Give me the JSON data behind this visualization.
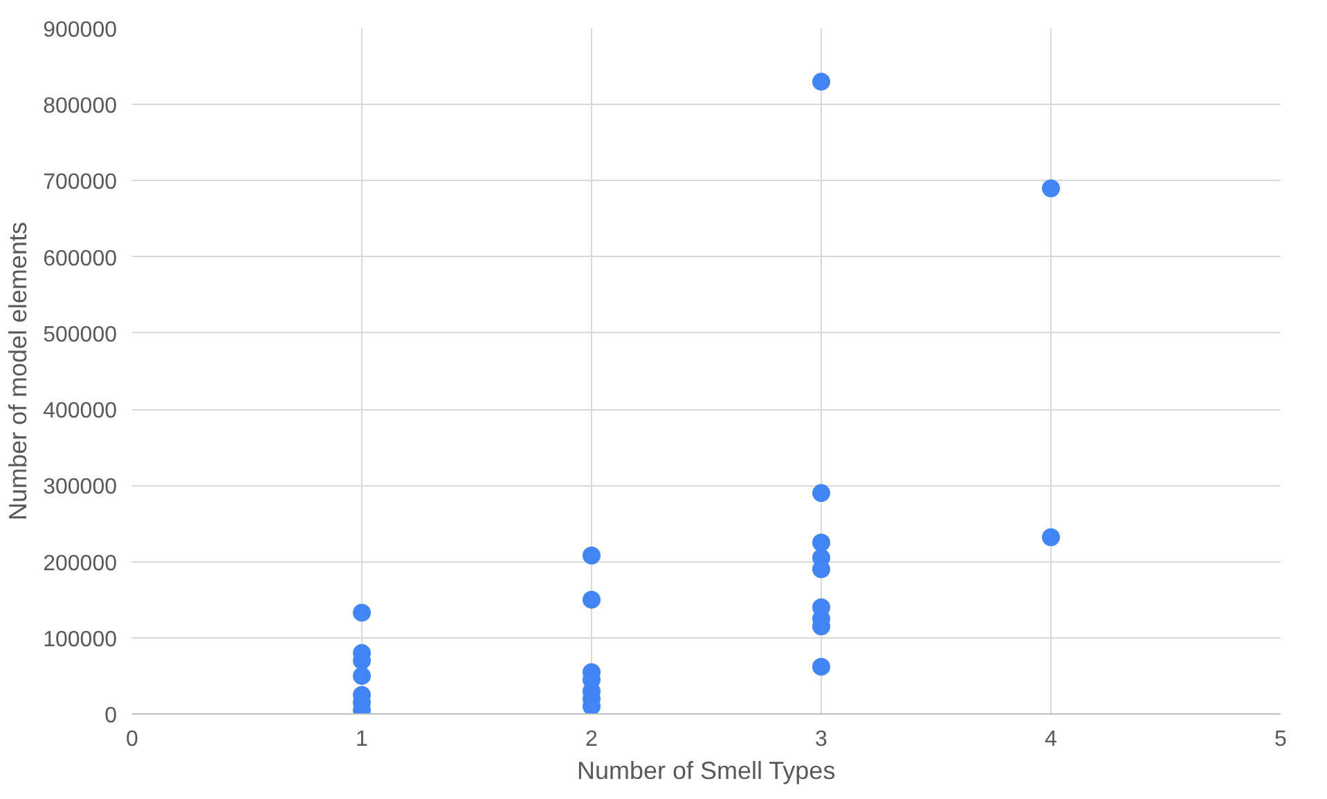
{
  "chart_data": {
    "type": "scatter",
    "xlabel": "Number of Smell Types",
    "ylabel": "Number of model elements",
    "x": [
      1,
      1,
      1,
      1,
      1,
      1,
      1,
      2,
      2,
      2,
      2,
      2,
      2,
      2,
      3,
      3,
      3,
      3,
      3,
      3,
      3,
      3,
      3,
      4,
      4
    ],
    "values": [
      133000,
      80000,
      70000,
      50000,
      25000,
      15000,
      5000,
      208000,
      150000,
      55000,
      45000,
      30000,
      20000,
      10000,
      830000,
      290000,
      225000,
      205000,
      190000,
      140000,
      125000,
      115000,
      62000,
      690000,
      232000
    ],
    "color": "#4285f4",
    "marker": "circle",
    "grid": true,
    "xlim": [
      0,
      5
    ],
    "xticks": [
      0,
      1,
      2,
      3,
      4,
      5
    ],
    "ylim": [
      0,
      900000
    ],
    "yticks": [
      0,
      100000,
      200000,
      300000,
      400000,
      500000,
      600000,
      700000,
      800000,
      900000
    ]
  }
}
